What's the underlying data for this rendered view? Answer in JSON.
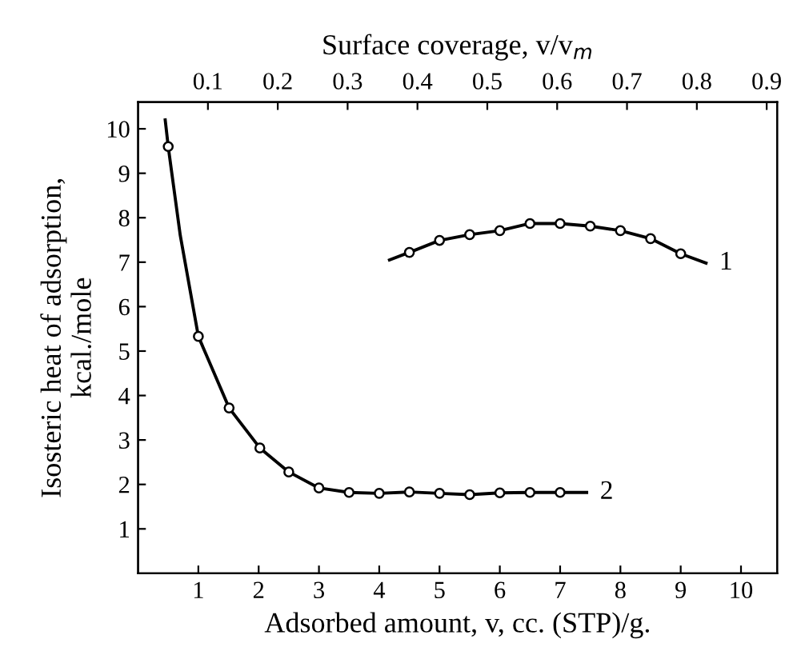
{
  "chart_data": {
    "type": "line",
    "xlabel": "Adsorbed amount, v, cc. (STP)/g.",
    "ylabel": "Isosteric heat of adsorption,\nkcal./mole",
    "x2label": "Surface coverage, v/v$_{m}$",
    "xlim": [
      0,
      10.6
    ],
    "xticks": [
      1,
      2,
      3,
      4,
      5,
      6,
      7,
      8,
      9,
      10
    ],
    "ylim": [
      0,
      10.6
    ],
    "yticks": [
      1,
      2,
      3,
      4,
      5,
      6,
      7,
      8,
      9,
      10
    ],
    "x2lim": [
      0,
      0.915
    ],
    "x2ticks": [
      0.1,
      0.2,
      0.3,
      0.4,
      0.5,
      0.6,
      0.7,
      0.8,
      0.9
    ],
    "grid": false,
    "legend": false,
    "series": [
      {
        "name": "1",
        "color": "#000000",
        "marker": "none",
        "x": [
          4.17,
          4.5,
          5.0,
          5.5,
          6.0,
          6.5,
          7.0,
          7.5,
          8.0,
          8.5,
          9.0,
          9.42
        ],
        "values": [
          7.05,
          7.22,
          7.49,
          7.62,
          7.71,
          7.87,
          7.87,
          7.81,
          7.71,
          7.53,
          7.19,
          6.98
        ]
      },
      {
        "type": "scatter",
        "color": "#000000",
        "marker": "circle",
        "x": [
          4.5,
          5.0,
          5.5,
          6.0,
          6.5,
          7.0,
          7.5,
          8.0,
          8.5,
          9.0
        ],
        "values": [
          7.22,
          7.49,
          7.62,
          7.71,
          7.87,
          7.87,
          7.81,
          7.71,
          7.53,
          7.19
        ]
      },
      {
        "name": "2",
        "color": "#000000",
        "marker": "none",
        "x": [
          0.45,
          0.5,
          0.56,
          0.7,
          1.0,
          1.51,
          2.02,
          2.5,
          3.0,
          3.5,
          4.0,
          4.5,
          5.0,
          5.5,
          6.0,
          6.5,
          7.0,
          7.44
        ],
        "values": [
          10.2,
          9.6,
          9.0,
          7.6,
          5.33,
          3.72,
          2.82,
          2.28,
          1.92,
          1.82,
          1.8,
          1.83,
          1.8,
          1.77,
          1.81,
          1.82,
          1.82,
          1.82
        ]
      },
      {
        "type": "scatter",
        "color": "#000000",
        "marker": "circle",
        "x": [
          0.5,
          1.0,
          1.51,
          2.02,
          2.5,
          3.0,
          3.5,
          4.0,
          4.5,
          5.0,
          5.5,
          6.0,
          6.5,
          7.0
        ],
        "values": [
          9.6,
          5.33,
          3.72,
          2.82,
          2.28,
          1.92,
          1.82,
          1.8,
          1.83,
          1.8,
          1.77,
          1.81,
          1.82,
          1.82
        ]
      }
    ]
  }
}
